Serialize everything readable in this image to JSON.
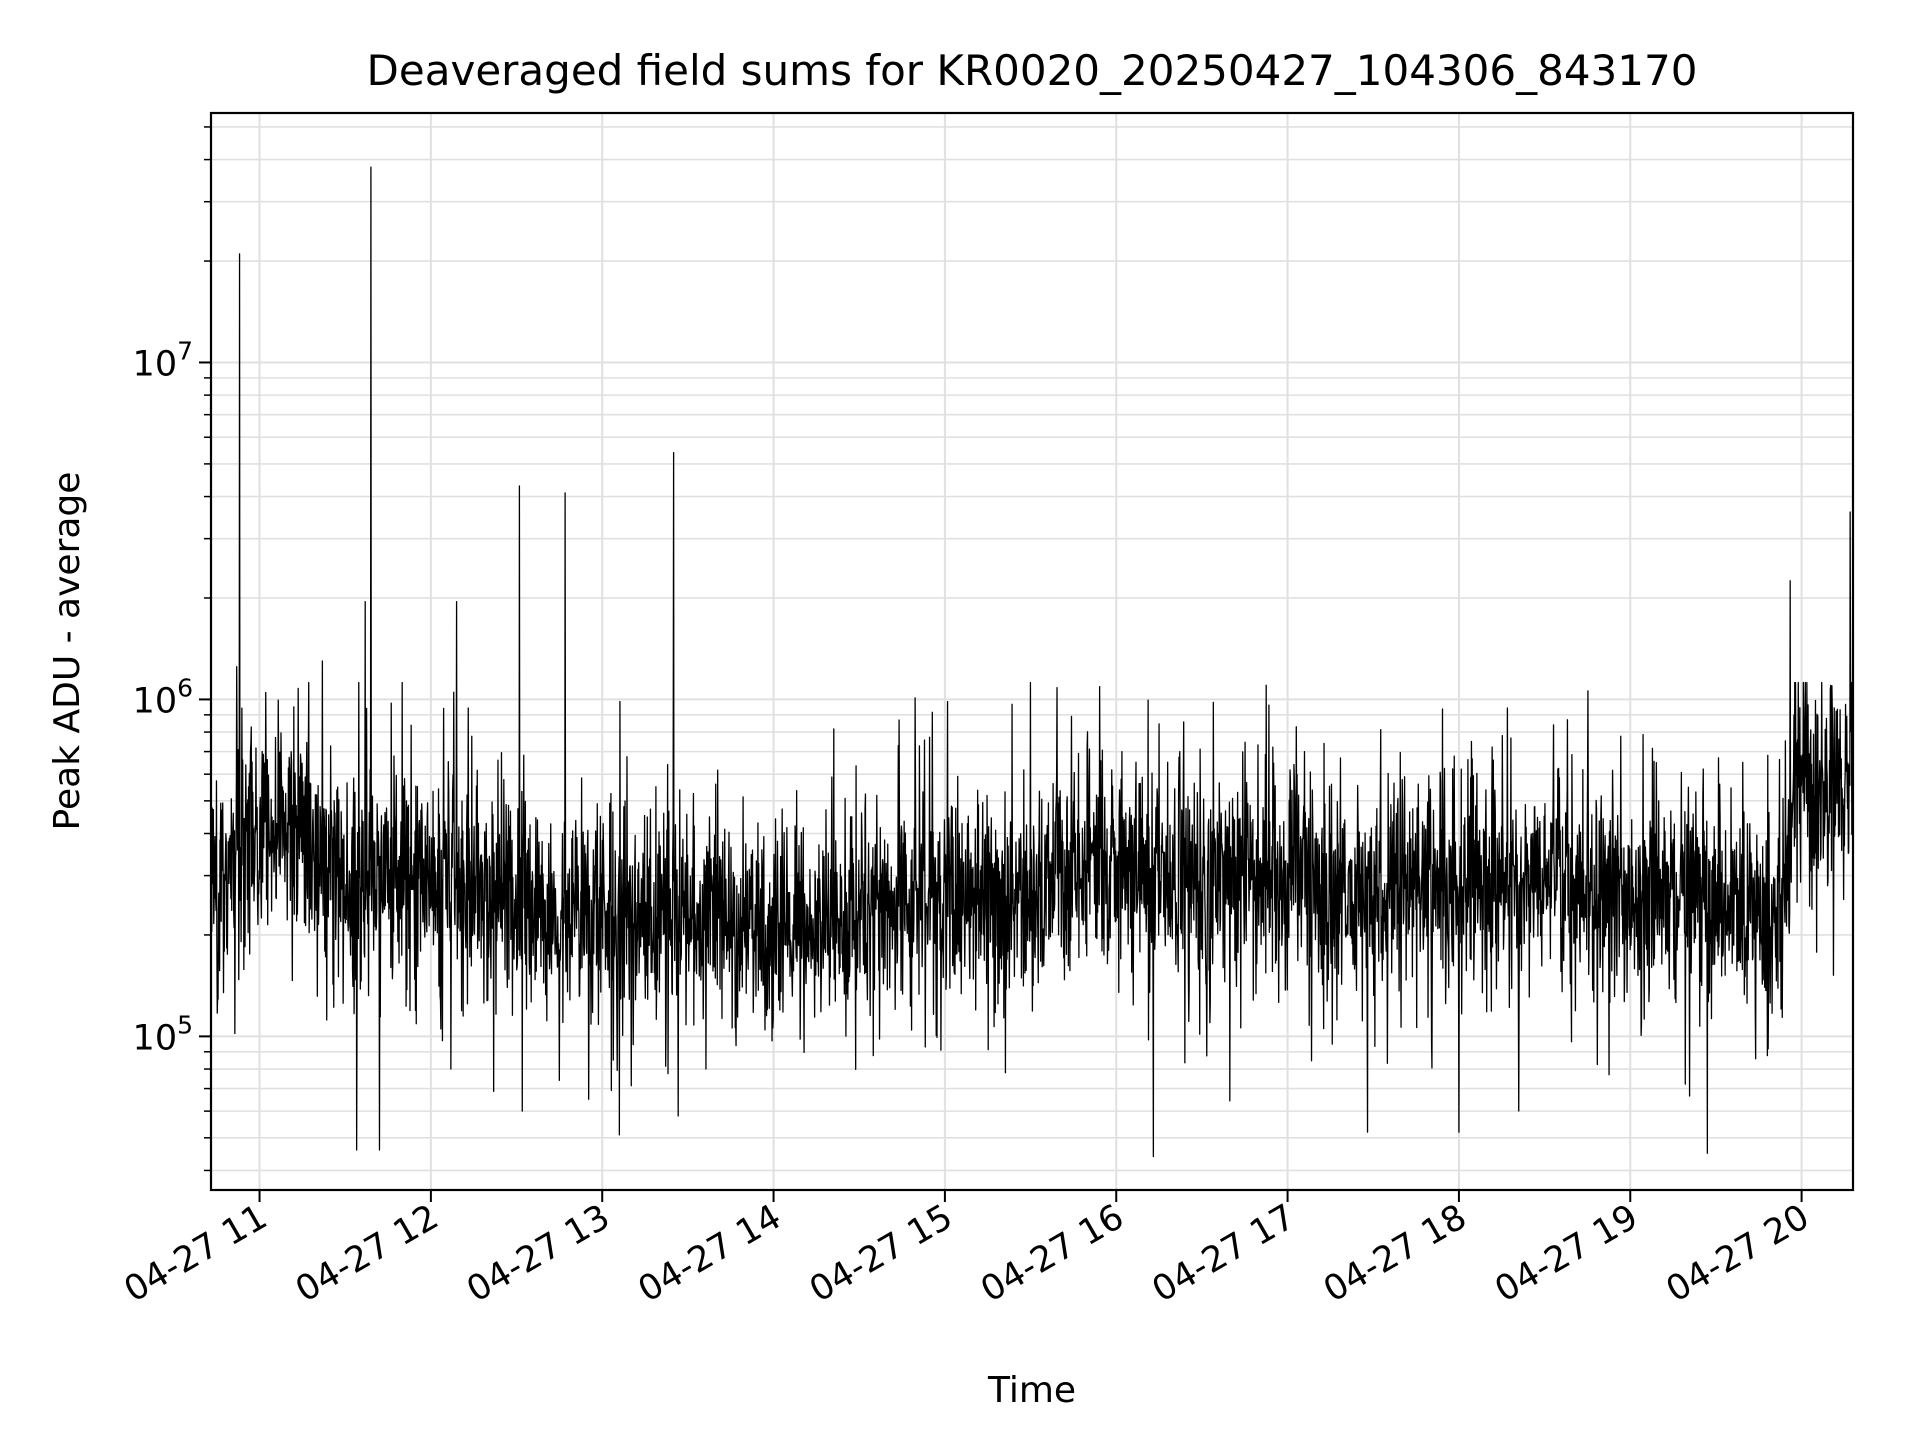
{
  "chart_data": {
    "type": "line",
    "title": "Deaveraged field sums for KR0020_20250427_104306_843170",
    "xlabel": "Time",
    "ylabel": "Peak ADU - average",
    "x_axis": {
      "kind": "datetime",
      "range": [
        "2025-04-27 10:43",
        "2025-04-27 20:18"
      ],
      "ticks": [
        "04-27 11",
        "04-27 12",
        "04-27 13",
        "04-27 14",
        "04-27 15",
        "04-27 16",
        "04-27 17",
        "04-27 18",
        "04-27 19",
        "04-27 20"
      ],
      "tick_rotation_deg": 30
    },
    "y_axis": {
      "scale": "log",
      "range": [
        35000,
        55000000
      ],
      "major_ticks": [
        {
          "value": 100000,
          "base": "10",
          "exp": "5"
        },
        {
          "value": 1000000,
          "base": "10",
          "exp": "6"
        },
        {
          "value": 10000000,
          "base": "10",
          "exp": "7"
        }
      ]
    },
    "grid": true,
    "grid_color": "#e0e0e0",
    "line_color": "#000000",
    "baseline": {
      "times": [
        "2025-04-27 10:43",
        "2025-04-27 11:00",
        "2025-04-27 11:15",
        "2025-04-27 11:30",
        "2025-04-27 12:00",
        "2025-04-27 12:30",
        "2025-04-27 13:00",
        "2025-04-27 13:30",
        "2025-04-27 14:00",
        "2025-04-27 14:30",
        "2025-04-27 15:00",
        "2025-04-27 15:30",
        "2025-04-27 15:40",
        "2025-04-27 16:00",
        "2025-04-27 16:30",
        "2025-04-27 17:00",
        "2025-04-27 17:30",
        "2025-04-27 18:00",
        "2025-04-27 18:30",
        "2025-04-27 19:00",
        "2025-04-27 19:30",
        "2025-04-27 19:52",
        "2025-04-27 19:58",
        "2025-04-27 20:18"
      ],
      "values": [
        250000,
        400000,
        420000,
        300000,
        280000,
        260000,
        230000,
        220000,
        200000,
        220000,
        260000,
        250000,
        350000,
        320000,
        300000,
        300000,
        260000,
        280000,
        280000,
        270000,
        250000,
        230000,
        560000,
        560000
      ]
    },
    "spikes": [
      {
        "time": "2025-04-27 10:53",
        "value": 21000000
      },
      {
        "time": "2025-04-27 10:52",
        "value": 1250000
      },
      {
        "time": "2025-04-27 11:12",
        "value": 950000
      },
      {
        "time": "2025-04-27 11:22",
        "value": 1300000
      },
      {
        "time": "2025-04-27 11:37",
        "value": 1950000
      },
      {
        "time": "2025-04-27 11:39",
        "value": 38000000
      },
      {
        "time": "2025-04-27 12:09",
        "value": 1950000
      },
      {
        "time": "2025-04-27 12:08",
        "value": 1050000
      },
      {
        "time": "2025-04-27 12:31",
        "value": 4300000
      },
      {
        "time": "2025-04-27 12:47",
        "value": 4100000
      },
      {
        "time": "2025-04-27 13:25",
        "value": 5400000
      },
      {
        "time": "2025-04-27 16:34",
        "value": 980000
      },
      {
        "time": "2025-04-27 18:38",
        "value": 870000
      },
      {
        "time": "2025-04-27 19:56",
        "value": 2250000
      },
      {
        "time": "2025-04-27 20:17",
        "value": 3600000
      }
    ],
    "dips": [
      {
        "time": "2025-04-27 11:34",
        "value": 46000
      },
      {
        "time": "2025-04-27 11:42",
        "value": 46000
      },
      {
        "time": "2025-04-27 12:07",
        "value": 80000
      },
      {
        "time": "2025-04-27 12:32",
        "value": 60000
      },
      {
        "time": "2025-04-27 13:06",
        "value": 51000
      },
      {
        "time": "2025-04-27 16:13",
        "value": 44000
      },
      {
        "time": "2025-04-27 17:28",
        "value": 52000
      },
      {
        "time": "2025-04-27 18:00",
        "value": 52000
      },
      {
        "time": "2025-04-27 19:27",
        "value": 45000
      }
    ]
  }
}
